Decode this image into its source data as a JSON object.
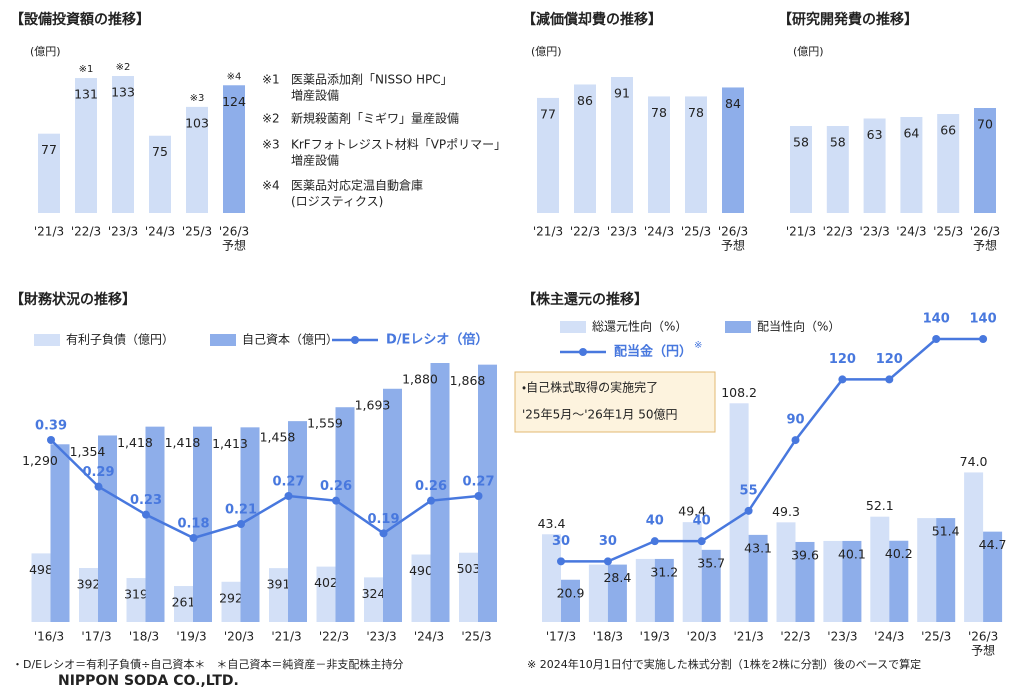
{
  "chart_data": [
    {
      "type": "bar",
      "title": "【設備投資額の推移】",
      "unit_label": "(億円)",
      "categories": [
        "'21/3",
        "'22/3",
        "'23/3",
        "'24/3",
        "'25/3",
        [
          "'26/3",
          "予想"
        ]
      ],
      "values": [
        77,
        131,
        133,
        75,
        103,
        124
      ],
      "colors": [
        "#d0def6",
        "#d0def6",
        "#d0def6",
        "#d0def6",
        "#d0def6",
        "#8eaeea"
      ],
      "bar_notes": [
        null,
        "※1",
        "※2",
        null,
        "※3",
        "※4"
      ],
      "notes": [
        {
          "mark": "※1",
          "text": [
            "医薬品添加剤「NISSO HPC」",
            "増産設備"
          ]
        },
        {
          "mark": "※2",
          "text": [
            "新規殺菌剤「ミギワ」量産設備"
          ]
        },
        {
          "mark": "※3",
          "text": [
            "KrFフォトレジスト材料「VPポリマー」",
            "増産設備"
          ]
        },
        {
          "mark": "※4",
          "text": [
            "医薬品対応定温自動倉庫",
            "(ロジスティクス)"
          ]
        }
      ]
    },
    {
      "type": "bar",
      "title": "【減価償却費の推移】",
      "unit_label": "(億円)",
      "categories": [
        "'21/3",
        "'22/3",
        "'23/3",
        "'24/3",
        "'25/3",
        [
          "'26/3",
          "予想"
        ]
      ],
      "values": [
        77,
        86,
        91,
        78,
        78,
        84
      ],
      "colors": [
        "#d0def6",
        "#d0def6",
        "#d0def6",
        "#d0def6",
        "#d0def6",
        "#8eaeea"
      ]
    },
    {
      "type": "bar",
      "title": "【研究開発費の推移】",
      "unit_label": "(億円)",
      "categories": [
        "'21/3",
        "'22/3",
        "'23/3",
        "'24/3",
        "'25/3",
        [
          "'26/3",
          "予想"
        ]
      ],
      "values": [
        58,
        58,
        63,
        64,
        66,
        70
      ],
      "colors": [
        "#d0def6",
        "#d0def6",
        "#d0def6",
        "#d0def6",
        "#d0def6",
        "#8eaeea"
      ]
    },
    {
      "type": "combo",
      "title": "【財務状況の推移】",
      "categories": [
        "'16/3",
        "'17/3",
        "'18/3",
        "'19/3",
        "'20/3",
        "'21/3",
        "'22/3",
        "'23/3",
        "'24/3",
        "'25/3"
      ],
      "series": [
        {
          "name": "有利子負債（億円）",
          "type": "bar",
          "color": "#d3e0f7",
          "values": [
            498,
            392,
            319,
            261,
            292,
            391,
            402,
            324,
            490,
            503
          ]
        },
        {
          "name": "自己資本（億円）",
          "type": "bar",
          "color": "#8eaeea",
          "values": [
            1290,
            1354,
            1418,
            1418,
            1413,
            1458,
            1559,
            1693,
            1880,
            1868
          ],
          "value_labels": [
            "1,290",
            "1,354",
            "1,418",
            "1,418",
            "1,413",
            "1,458",
            "1,559",
            "1,693",
            "1,880",
            "1,868"
          ]
        },
        {
          "name": "D/Eレシオ（倍）",
          "type": "line",
          "axis": "y2",
          "color": "#4878de",
          "values": [
            0.39,
            0.29,
            0.23,
            0.18,
            0.21,
            0.27,
            0.26,
            0.19,
            0.26,
            0.27
          ]
        }
      ],
      "footnote": "・D/Eレシオ＝有利子負債÷自己資本＊　＊自己資本＝純資産－非支配株主持分"
    },
    {
      "type": "combo",
      "title": "【株主還元の推移】",
      "categories": [
        "'17/3",
        "'18/3",
        "'19/3",
        "'20/3",
        "'21/3",
        "'22/3",
        "'23/3",
        "'24/3",
        "'25/3",
        [
          "'26/3",
          "予想"
        ]
      ],
      "series": [
        {
          "name": "総還元性向（%）",
          "type": "bar",
          "color": "#d3e0f7",
          "values": [
            43.4,
            28.4,
            31.2,
            49.4,
            108.2,
            49.3,
            40.1,
            52.1,
            51.4,
            74.0
          ],
          "value_labels": [
            "43.4",
            null,
            null,
            "49.4",
            "108.2",
            "49.3",
            null,
            "52.1",
            null,
            "74.0"
          ]
        },
        {
          "name": "配当性向（%）",
          "type": "bar",
          "color": "#8eaeea",
          "values": [
            20.9,
            28.4,
            31.2,
            35.7,
            43.1,
            39.6,
            40.1,
            40.2,
            51.4,
            44.7
          ]
        },
        {
          "name": "配当金（円）",
          "name_note": "※",
          "type": "line",
          "color": "#4878de",
          "values": [
            30,
            30,
            40,
            40,
            55,
            90,
            120,
            120,
            140,
            140
          ]
        }
      ],
      "annotation": [
        "・自己株式取得の実施完了",
        "'25年5月～'26年1月 50億円"
      ],
      "footnote": "※ 2024年10月1日付で実施した株式分割（1株を2株に分割）後のベースで算定"
    }
  ],
  "company": "NIPPON SODA CO.,LTD."
}
